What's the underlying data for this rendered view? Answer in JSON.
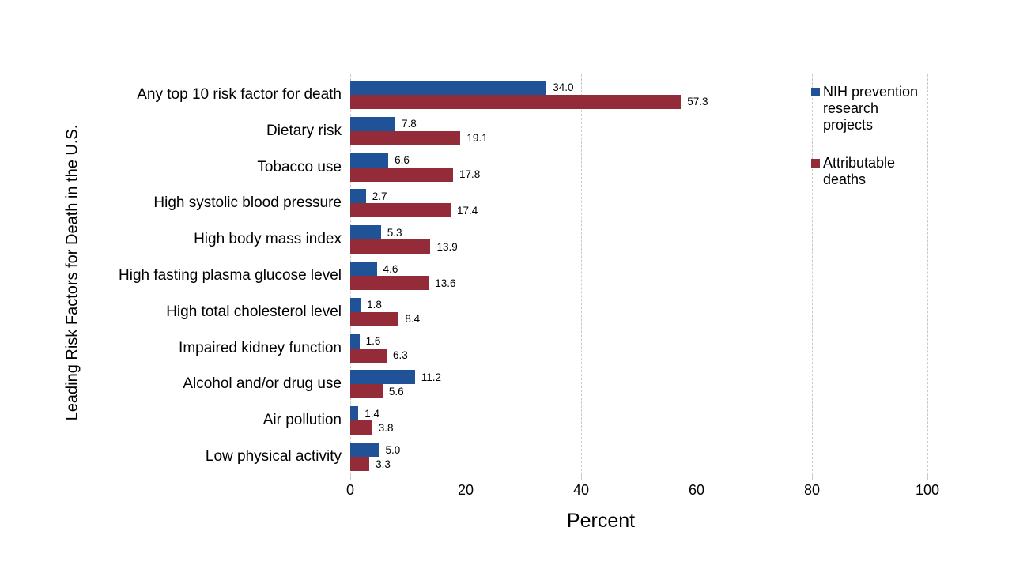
{
  "chart_data": {
    "type": "bar",
    "orientation": "horizontal",
    "title": "",
    "xlabel": "Percent",
    "ylabel": "Leading Risk Factors for Death in the U.S.",
    "xlim": [
      0,
      100
    ],
    "xticks": [
      0,
      20,
      40,
      60,
      80,
      100
    ],
    "grid": true,
    "legend_position": "upper-right-inside",
    "value_labels": true,
    "value_label_decimals": 1,
    "categories": [
      "Any top 10 risk factor for death",
      "Dietary risk",
      "Tobacco use",
      "High systolic blood pressure",
      "High body mass index",
      "High fasting plasma glucose level",
      "High total cholesterol level",
      "Impaired kidney function",
      "Alcohol and/or drug use",
      "Air pollution",
      "Low physical activity"
    ],
    "series": [
      {
        "name": "NIH prevention research projects",
        "color": "#1f5296",
        "values": [
          34.0,
          7.8,
          6.6,
          2.7,
          5.3,
          4.6,
          1.8,
          1.6,
          11.2,
          1.4,
          5.0
        ]
      },
      {
        "name": "Attributable deaths",
        "color": "#942b38",
        "values": [
          57.3,
          19.1,
          17.8,
          17.4,
          13.9,
          13.6,
          8.4,
          6.3,
          5.6,
          3.8,
          3.3
        ]
      }
    ]
  },
  "colors": {
    "background": "#ffffff",
    "gridline": "#c9c9c9",
    "text": "#000000"
  }
}
